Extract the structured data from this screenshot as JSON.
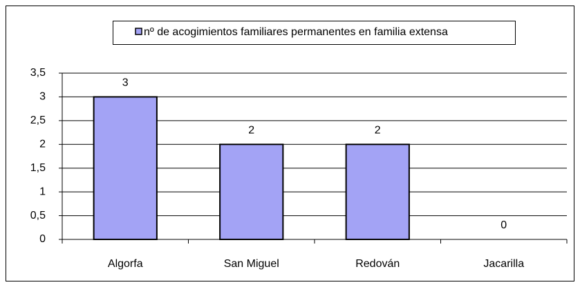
{
  "chart_data": {
    "type": "bar",
    "categories": [
      "Algorfa",
      "San Miguel",
      "Redován",
      "Jacarilla"
    ],
    "series": [
      {
        "name": "nº de acogimientos familiares permanentes en familia extensa",
        "color": "#a3a3f5",
        "values": [
          3,
          2,
          2,
          0
        ]
      }
    ],
    "ylim": [
      0,
      3.5
    ],
    "yticks": [
      0,
      {
        "value": 0.5,
        "label": "0,5"
      },
      1,
      {
        "value": 1.5,
        "label": "1,5"
      },
      2,
      {
        "value": 2.5,
        "label": "2,5"
      },
      3,
      {
        "value": 3.5,
        "label": "3,5"
      }
    ],
    "grid": true,
    "legend": "top"
  }
}
